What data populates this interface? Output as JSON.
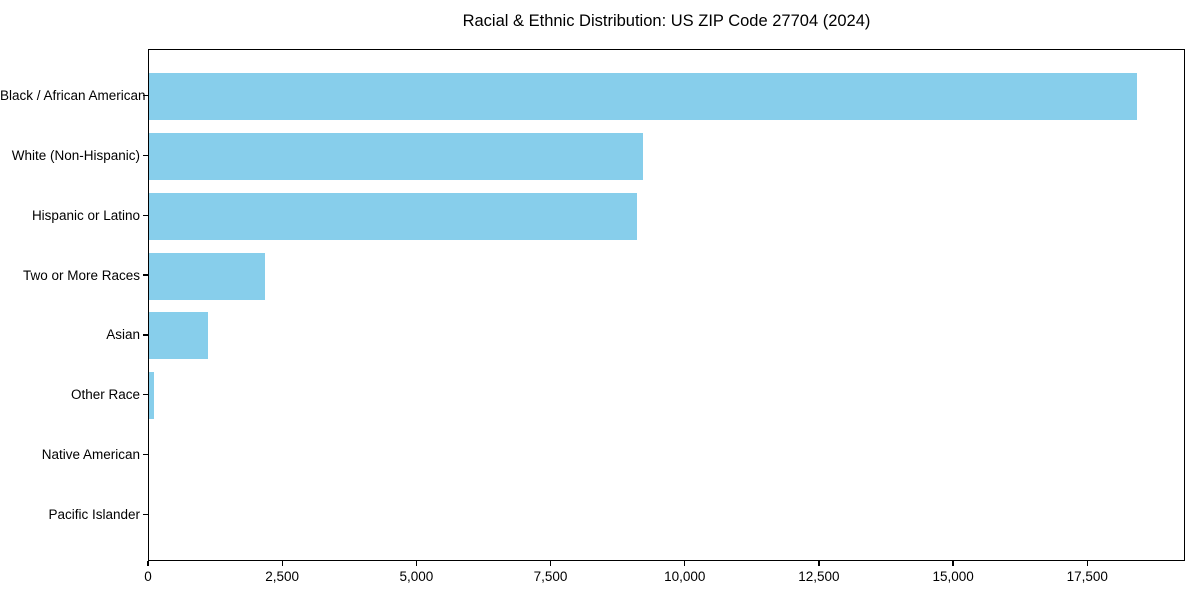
{
  "chart_data": {
    "type": "bar",
    "orientation": "horizontal",
    "title": "Racial & Ethnic Distribution: US ZIP Code 27704 (2024)",
    "categories": [
      "Black / African American",
      "White (Non-Hispanic)",
      "Hispanic or Latino",
      "Two or More Races",
      "Asian",
      "Other Race",
      "Native American",
      "Pacific Islander"
    ],
    "values": [
      18400,
      9200,
      9100,
      2170,
      1100,
      100,
      0,
      0
    ],
    "xlabel": "",
    "ylabel": "",
    "xlim": [
      0,
      19320
    ],
    "xticks": [
      0,
      2500,
      5000,
      7500,
      10000,
      12500,
      15000,
      17500
    ],
    "xtick_labels": [
      "0",
      "2,500",
      "5,000",
      "7,500",
      "10,000",
      "12,500",
      "15,000",
      "17,500"
    ],
    "bar_color": "#87CEEB",
    "axis_color": "#000000",
    "text_color": "#000000",
    "background_color": "#FFFFFF",
    "grid": false,
    "legend": null
  }
}
